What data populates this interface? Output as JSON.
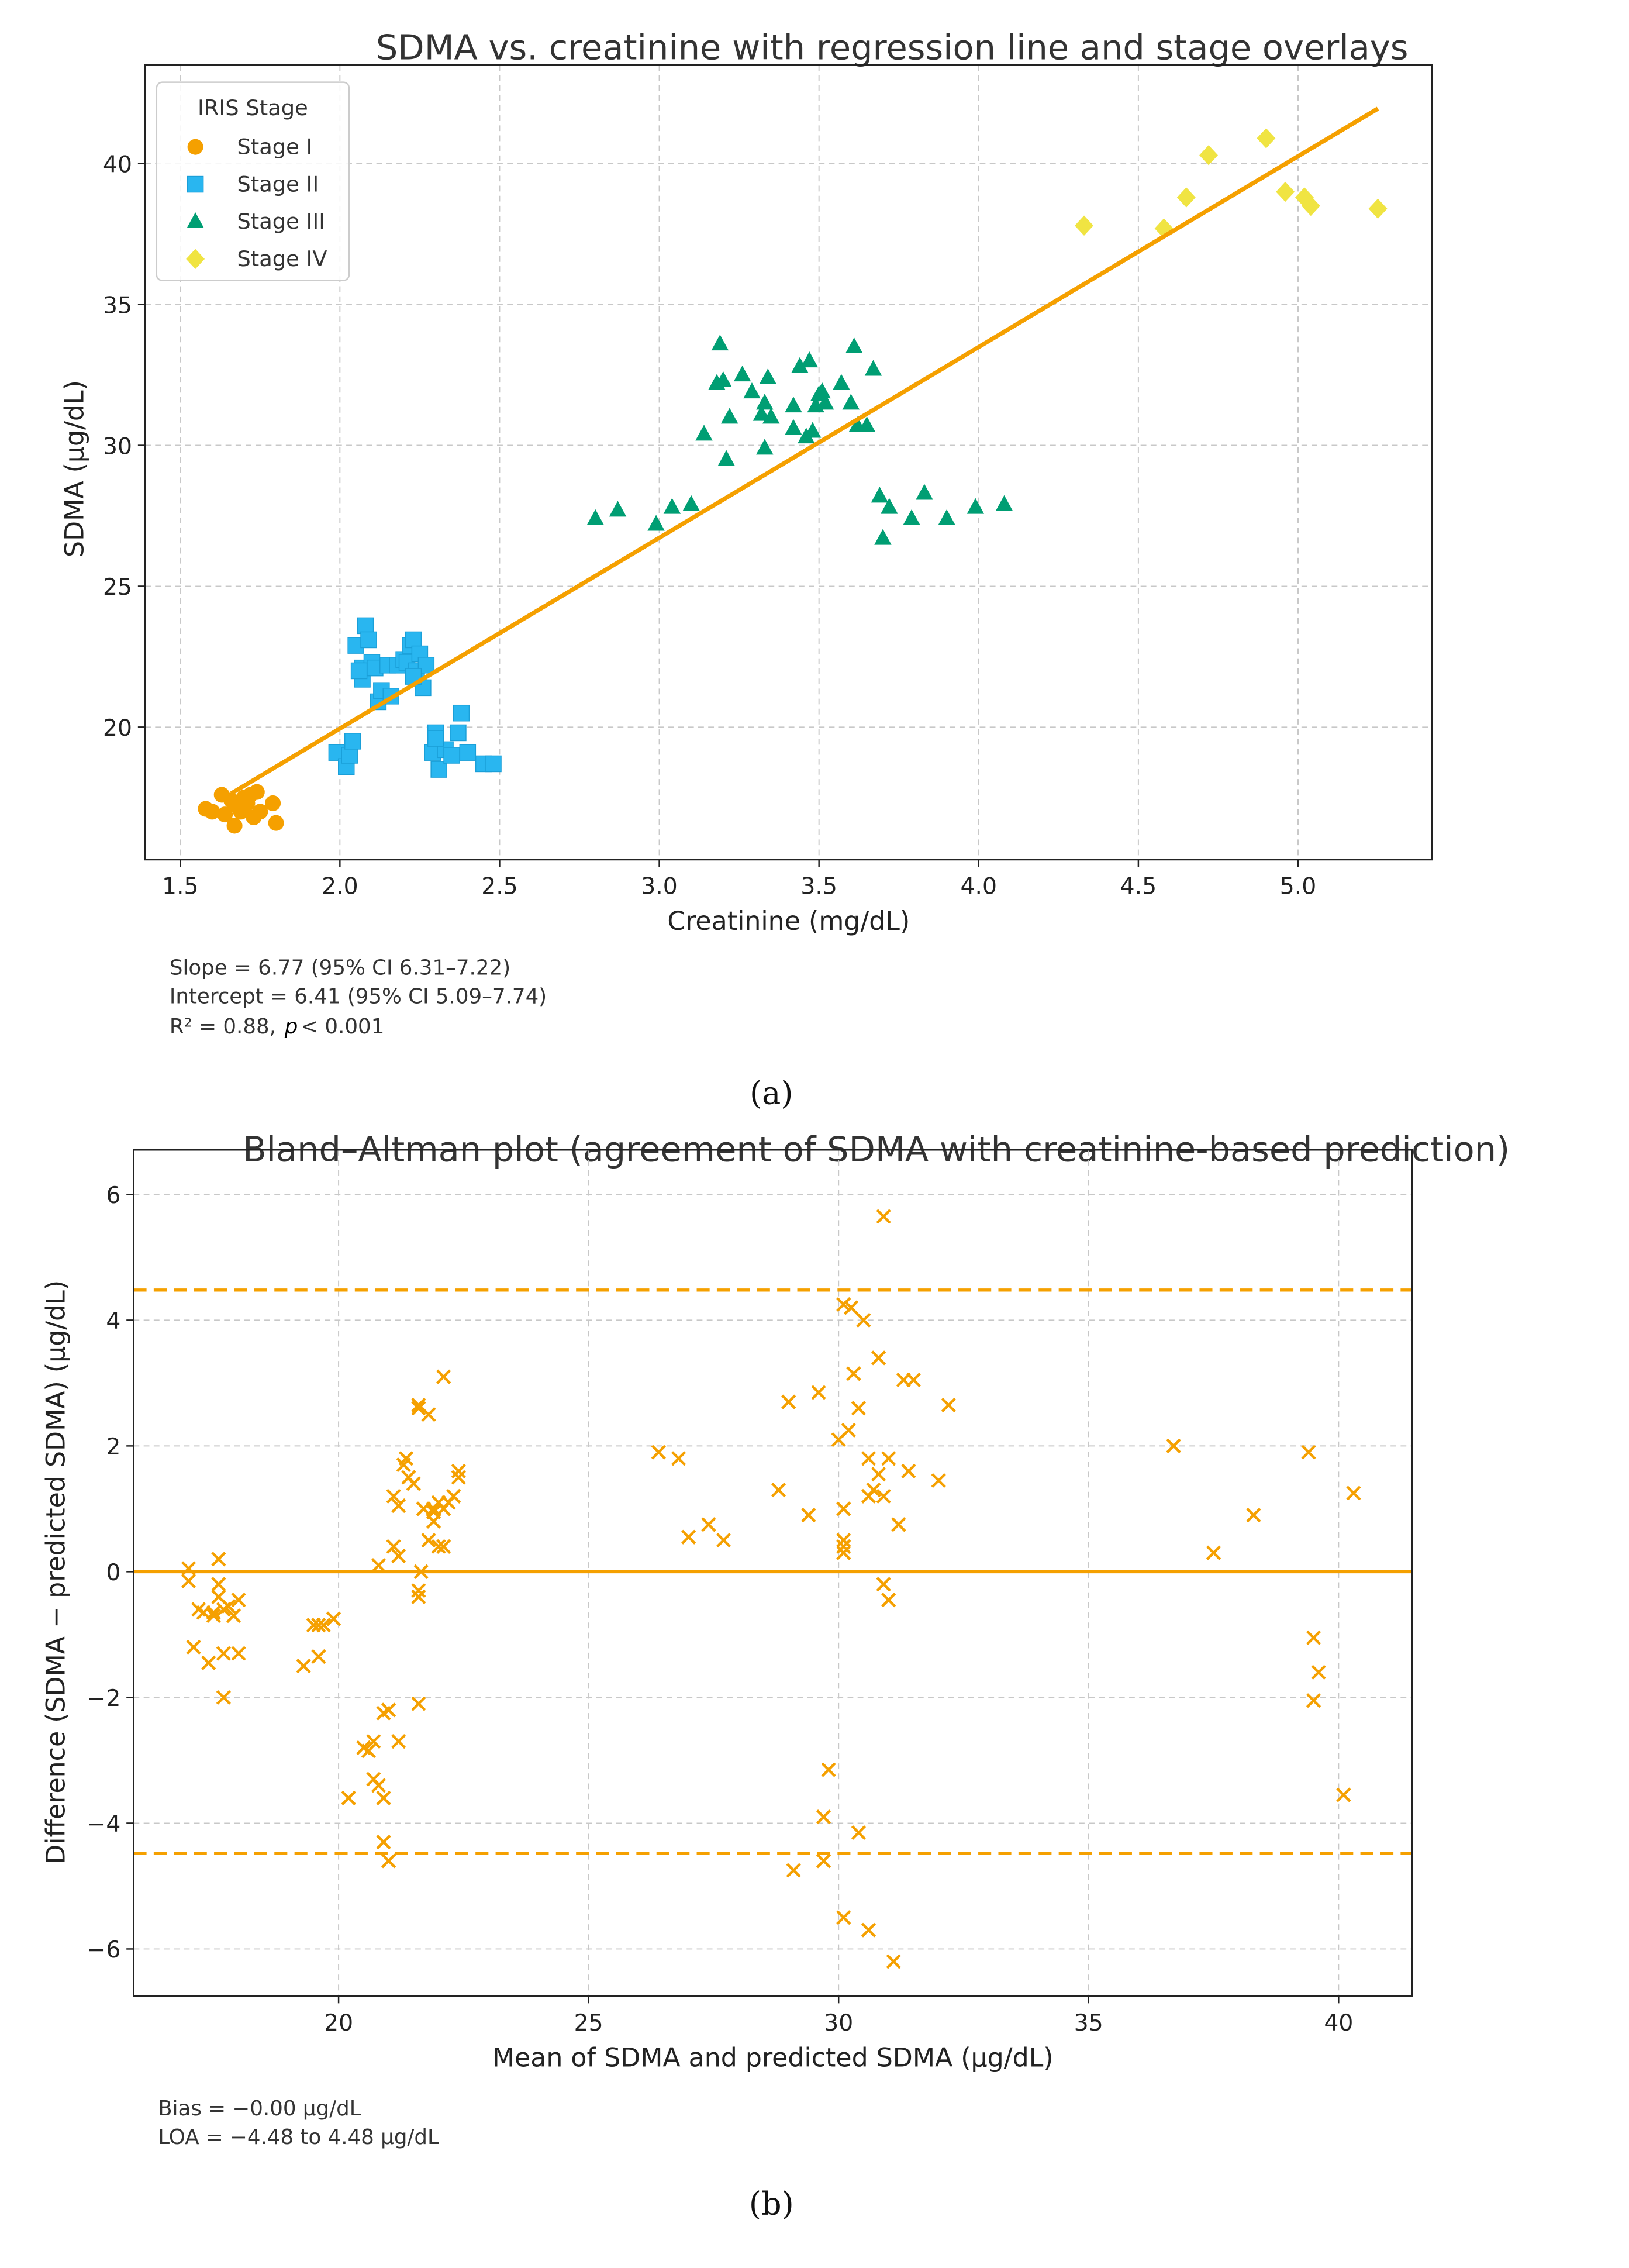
{
  "chart_data": [
    {
      "type": "scatter",
      "title": "SDMA vs. creatinine with regression line and stage overlays",
      "xlabel": "Creatinine (mg/dL)",
      "ylabel": "SDMA (µg/dL)",
      "xlim": [
        1.39,
        5.42
      ],
      "ylim": [
        15.3,
        43.5
      ],
      "xticks": [
        1.5,
        2.0,
        2.5,
        3.0,
        3.5,
        4.0,
        4.5,
        5.0
      ],
      "xtick_labels": [
        "1.5",
        "2.0",
        "2.5",
        "3.0",
        "3.5",
        "4.0",
        "4.5",
        "5.0"
      ],
      "yticks": [
        20,
        25,
        30,
        35,
        40
      ],
      "ytick_labels": [
        "20",
        "25",
        "30",
        "35",
        "40"
      ],
      "grid": true,
      "legend": {
        "title": "IRIS Stage",
        "placement": "top-left"
      },
      "series": [
        {
          "name": "Stage I",
          "marker": "circle",
          "color": "#f5a000",
          "points": [
            [
              1.58,
              17.1
            ],
            [
              1.6,
              17.0
            ],
            [
              1.63,
              17.6
            ],
            [
              1.64,
              16.9
            ],
            [
              1.66,
              17.4
            ],
            [
              1.67,
              16.5
            ],
            [
              1.68,
              17.2
            ],
            [
              1.7,
              17.5
            ],
            [
              1.71,
              17.3
            ],
            [
              1.72,
              17.6
            ],
            [
              1.73,
              16.8
            ],
            [
              1.74,
              17.7
            ],
            [
              1.75,
              17.0
            ],
            [
              1.79,
              17.3
            ],
            [
              1.8,
              16.6
            ],
            [
              1.69,
              17.0
            ]
          ]
        },
        {
          "name": "Stage II",
          "marker": "square",
          "color": "#29b6f0",
          "points": [
            [
              2.05,
              22.9
            ],
            [
              2.07,
              22.1
            ],
            [
              2.08,
              23.6
            ],
            [
              2.09,
              23.1
            ],
            [
              2.07,
              21.7
            ],
            [
              2.1,
              22.3
            ],
            [
              2.11,
              22.1
            ],
            [
              2.12,
              20.9
            ],
            [
              2.13,
              21.3
            ],
            [
              2.15,
              22.2
            ],
            [
              2.16,
              21.1
            ],
            [
              2.18,
              22.2
            ],
            [
              2.2,
              22.4
            ],
            [
              2.21,
              22.3
            ],
            [
              2.22,
              22.9
            ],
            [
              2.23,
              23.1
            ],
            [
              2.24,
              22.0
            ],
            [
              2.25,
              22.6
            ],
            [
              2.26,
              21.4
            ],
            [
              2.27,
              22.2
            ],
            [
              2.23,
              21.8
            ],
            [
              2.06,
              22.0
            ],
            [
              1.99,
              19.1
            ],
            [
              2.02,
              18.6
            ],
            [
              2.03,
              19.0
            ],
            [
              2.04,
              19.5
            ],
            [
              2.29,
              19.1
            ],
            [
              2.3,
              19.8
            ],
            [
              2.31,
              18.5
            ],
            [
              2.33,
              19.2
            ],
            [
              2.35,
              19.0
            ],
            [
              2.37,
              19.8
            ],
            [
              2.38,
              20.5
            ],
            [
              2.4,
              19.1
            ],
            [
              2.45,
              18.7
            ],
            [
              2.48,
              18.7
            ],
            [
              2.3,
              19.6
            ]
          ]
        },
        {
          "name": "Stage III",
          "marker": "triangle",
          "color": "#009e73",
          "points": [
            [
              2.8,
              27.4
            ],
            [
              2.87,
              27.7
            ],
            [
              2.99,
              27.2
            ],
            [
              3.04,
              27.8
            ],
            [
              3.1,
              27.9
            ],
            [
              3.14,
              30.4
            ],
            [
              3.18,
              32.2
            ],
            [
              3.19,
              33.6
            ],
            [
              3.2,
              32.3
            ],
            [
              3.21,
              29.5
            ],
            [
              3.22,
              31.0
            ],
            [
              3.26,
              32.5
            ],
            [
              3.29,
              31.9
            ],
            [
              3.32,
              31.1
            ],
            [
              3.33,
              29.9
            ],
            [
              3.33,
              31.5
            ],
            [
              3.34,
              32.4
            ],
            [
              3.35,
              31.0
            ],
            [
              3.42,
              31.4
            ],
            [
              3.42,
              30.6
            ],
            [
              3.44,
              32.8
            ],
            [
              3.46,
              30.3
            ],
            [
              3.47,
              33.0
            ],
            [
              3.48,
              30.5
            ],
            [
              3.49,
              31.4
            ],
            [
              3.5,
              31.8
            ],
            [
              3.51,
              31.9
            ],
            [
              3.52,
              31.5
            ],
            [
              3.57,
              32.2
            ],
            [
              3.6,
              31.5
            ],
            [
              3.61,
              33.5
            ],
            [
              3.62,
              30.7
            ],
            [
              3.65,
              30.7
            ],
            [
              3.67,
              32.7
            ],
            [
              3.69,
              28.2
            ],
            [
              3.7,
              26.7
            ],
            [
              3.72,
              27.8
            ],
            [
              3.79,
              27.4
            ],
            [
              3.83,
              28.3
            ],
            [
              3.9,
              27.4
            ],
            [
              3.99,
              27.8
            ],
            [
              4.08,
              27.9
            ]
          ]
        },
        {
          "name": "Stage IV",
          "marker": "diamond",
          "color": "#f0e442",
          "points": [
            [
              4.33,
              37.8
            ],
            [
              4.58,
              37.7
            ],
            [
              4.65,
              38.8
            ],
            [
              4.72,
              40.3
            ],
            [
              4.9,
              40.9
            ],
            [
              4.96,
              39.0
            ],
            [
              5.02,
              38.8
            ],
            [
              5.04,
              38.5
            ],
            [
              5.25,
              38.4
            ]
          ]
        }
      ],
      "regression": {
        "slope": 6.77,
        "intercept": 6.41,
        "x_range": [
          1.66,
          5.25
        ],
        "color": "#f5a000"
      },
      "annotations": {
        "slope": "Slope = 6.77 (95% CI 6.31–7.22)",
        "intercept": "Intercept = 6.41 (95% CI 5.09–7.74)",
        "r2": "R² = 0.88,",
        "p_symbol": "p",
        "p_value": "< 0.001"
      },
      "caption": "(a)"
    },
    {
      "type": "scatter",
      "title": "Bland–Altman plot (agreement of SDMA with creatinine-based prediction)",
      "xlabel": "Mean of SDMA and predicted SDMA (µg/dL)",
      "ylabel": "Difference (SDMA − predicted SDMA) (µg/dL)",
      "xlim": [
        15.9,
        41.47
      ],
      "ylim": [
        -6.75,
        6.71
      ],
      "xticks": [
        20,
        25,
        30,
        35,
        40
      ],
      "xtick_labels": [
        "20",
        "25",
        "30",
        "35",
        "40"
      ],
      "yticks": [
        -6,
        -4,
        -2,
        0,
        2,
        4,
        6
      ],
      "ytick_labels": [
        "−6",
        "−4",
        "−2",
        "0",
        "2",
        "4",
        "6"
      ],
      "grid": true,
      "marker": "x",
      "color": "#f5a000",
      "bias": 0.0,
      "loa": [
        -4.48,
        4.48
      ],
      "points": [
        [
          17.0,
          0.05
        ],
        [
          17.0,
          -0.15
        ],
        [
          17.1,
          -1.2
        ],
        [
          17.2,
          -0.6
        ],
        [
          17.3,
          -0.65
        ],
        [
          17.4,
          -1.45
        ],
        [
          17.5,
          -0.7
        ],
        [
          17.6,
          -0.2
        ],
        [
          17.6,
          -0.4
        ],
        [
          17.6,
          0.2
        ],
        [
          17.7,
          -0.6
        ],
        [
          17.7,
          -1.3
        ],
        [
          17.7,
          -2.0
        ],
        [
          17.8,
          -0.55
        ],
        [
          17.9,
          -0.7
        ],
        [
          18.0,
          -0.45
        ],
        [
          18.0,
          -1.3
        ],
        [
          17.5,
          -0.65
        ],
        [
          19.3,
          -1.5
        ],
        [
          19.5,
          -0.85
        ],
        [
          19.6,
          -0.85
        ],
        [
          19.6,
          -1.35
        ],
        [
          19.7,
          -0.85
        ],
        [
          19.9,
          -0.75
        ],
        [
          20.2,
          -3.6
        ],
        [
          20.5,
          -2.8
        ],
        [
          20.6,
          -2.85
        ],
        [
          20.7,
          -2.7
        ],
        [
          20.7,
          -3.3
        ],
        [
          20.8,
          -3.4
        ],
        [
          20.8,
          0.1
        ],
        [
          20.9,
          -4.3
        ],
        [
          20.9,
          -3.6
        ],
        [
          20.9,
          -2.25
        ],
        [
          21.0,
          -2.2
        ],
        [
          21.0,
          -4.6
        ],
        [
          21.1,
          1.2
        ],
        [
          21.1,
          0.4
        ],
        [
          21.2,
          0.25
        ],
        [
          21.2,
          -2.7
        ],
        [
          21.2,
          1.05
        ],
        [
          21.3,
          1.7
        ],
        [
          21.35,
          1.8
        ],
        [
          21.4,
          1.5
        ],
        [
          21.5,
          1.4
        ],
        [
          21.6,
          2.6
        ],
        [
          21.6,
          2.65
        ],
        [
          21.6,
          -2.1
        ],
        [
          21.6,
          -0.3
        ],
        [
          21.6,
          -0.4
        ],
        [
          21.65,
          0.0
        ],
        [
          21.7,
          1.0
        ],
        [
          21.8,
          2.5
        ],
        [
          21.8,
          0.5
        ],
        [
          21.9,
          1.0
        ],
        [
          21.9,
          0.8
        ],
        [
          22.0,
          1.1
        ],
        [
          22.0,
          0.4
        ],
        [
          22.1,
          0.4
        ],
        [
          22.1,
          1.0
        ],
        [
          22.1,
          3.1
        ],
        [
          22.2,
          1.1
        ],
        [
          22.3,
          1.2
        ],
        [
          22.4,
          1.6
        ],
        [
          22.4,
          1.5
        ],
        [
          21.9,
          0.95
        ],
        [
          26.4,
          1.9
        ],
        [
          26.8,
          1.8
        ],
        [
          27.0,
          0.55
        ],
        [
          27.4,
          0.75
        ],
        [
          27.7,
          0.5
        ],
        [
          28.8,
          1.3
        ],
        [
          29.0,
          2.7
        ],
        [
          29.1,
          -4.75
        ],
        [
          29.4,
          0.9
        ],
        [
          29.6,
          2.85
        ],
        [
          29.7,
          -3.9
        ],
        [
          29.7,
          -4.6
        ],
        [
          29.8,
          -3.15
        ],
        [
          30.0,
          2.1
        ],
        [
          30.1,
          1.0
        ],
        [
          30.1,
          0.5
        ],
        [
          30.1,
          0.4
        ],
        [
          30.1,
          0.3
        ],
        [
          30.1,
          4.25
        ],
        [
          30.1,
          -5.5
        ],
        [
          30.2,
          2.25
        ],
        [
          30.25,
          4.2
        ],
        [
          30.3,
          3.15
        ],
        [
          30.4,
          2.6
        ],
        [
          30.4,
          -4.15
        ],
        [
          30.5,
          4.0
        ],
        [
          30.6,
          1.8
        ],
        [
          30.6,
          1.2
        ],
        [
          30.6,
          -5.7
        ],
        [
          30.7,
          1.3
        ],
        [
          30.8,
          3.4
        ],
        [
          30.8,
          1.55
        ],
        [
          30.9,
          5.65
        ],
        [
          30.9,
          1.2
        ],
        [
          30.9,
          -0.2
        ],
        [
          31.0,
          -0.45
        ],
        [
          31.0,
          1.8
        ],
        [
          31.1,
          -6.2
        ],
        [
          31.2,
          0.75
        ],
        [
          31.3,
          3.05
        ],
        [
          31.4,
          1.6
        ],
        [
          31.5,
          3.05
        ],
        [
          32.0,
          1.45
        ],
        [
          32.2,
          2.65
        ],
        [
          36.7,
          2.0
        ],
        [
          37.5,
          0.3
        ],
        [
          38.3,
          0.9
        ],
        [
          39.4,
          1.9
        ],
        [
          39.5,
          -1.05
        ],
        [
          39.5,
          -2.05
        ],
        [
          39.6,
          -1.6
        ],
        [
          40.1,
          -3.55
        ],
        [
          40.3,
          1.25
        ]
      ],
      "annotations": {
        "bias": "Bias = −0.00 µg/dL",
        "loa": "LOA = −4.48 to 4.48 µg/dL"
      },
      "caption": "(b)"
    }
  ]
}
